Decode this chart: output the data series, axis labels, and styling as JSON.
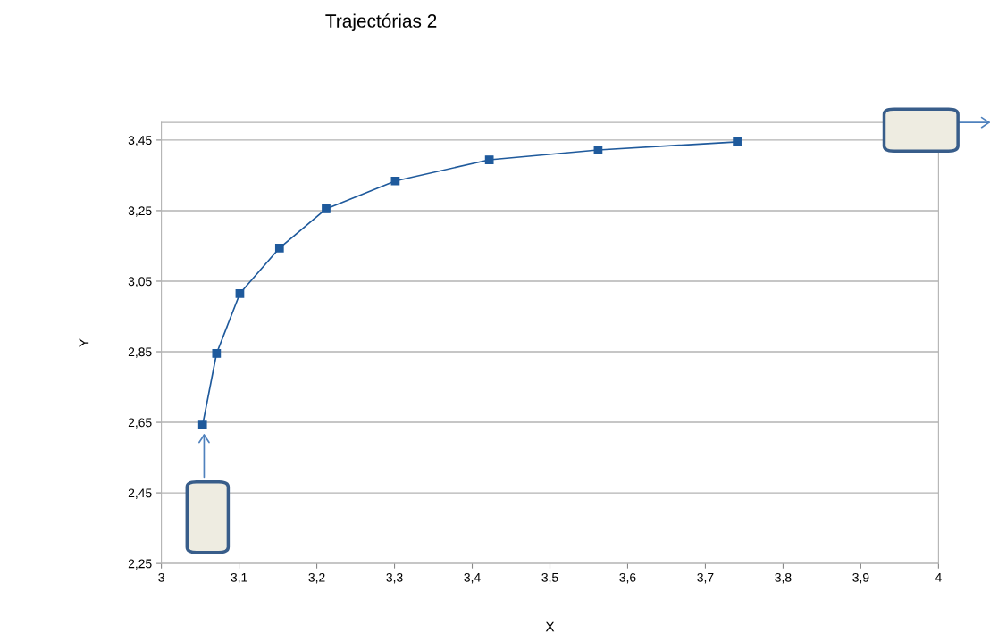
{
  "chart_data": {
    "type": "line",
    "title": "Trajectórias 2",
    "xlabel": "X",
    "ylabel": "Y",
    "x": [
      3.053,
      3.071,
      3.101,
      3.152,
      3.212,
      3.301,
      3.422,
      3.562,
      3.741
    ],
    "series": [
      {
        "color": "#1f5a9c",
        "values": [
          2.642,
          2.845,
          3.015,
          3.144,
          3.255,
          3.334,
          3.394,
          3.422,
          3.445
        ]
      }
    ],
    "xlim": [
      3,
      4
    ],
    "ylim": [
      2.25,
      3.5
    ],
    "xticks": [
      3,
      {
        "value": 3.1,
        "label": "3,1"
      },
      {
        "value": 3.2,
        "label": "3,2"
      },
      {
        "value": 3.3,
        "label": "3,3"
      },
      {
        "value": 3.4,
        "label": "3,4"
      },
      {
        "value": 3.5,
        "label": "3,5"
      },
      {
        "value": 3.6,
        "label": "3,6"
      },
      {
        "value": 3.7,
        "label": "3,7"
      },
      {
        "value": 3.8,
        "label": "3,8"
      },
      {
        "value": 3.9,
        "label": "3,9"
      },
      4
    ],
    "yticks": [
      {
        "value": 2.25,
        "label": "2,25"
      },
      {
        "value": 2.45,
        "label": "2,45"
      },
      {
        "value": 2.65,
        "label": "2,65"
      },
      {
        "value": 2.85,
        "label": "2,85"
      },
      {
        "value": 3.05,
        "label": "3,05"
      },
      {
        "value": 3.25,
        "label": "3,25"
      },
      {
        "value": 3.45,
        "label": "3,45"
      }
    ],
    "grid": "y",
    "marker": "square",
    "line_style": "solid",
    "legend": false
  }
}
